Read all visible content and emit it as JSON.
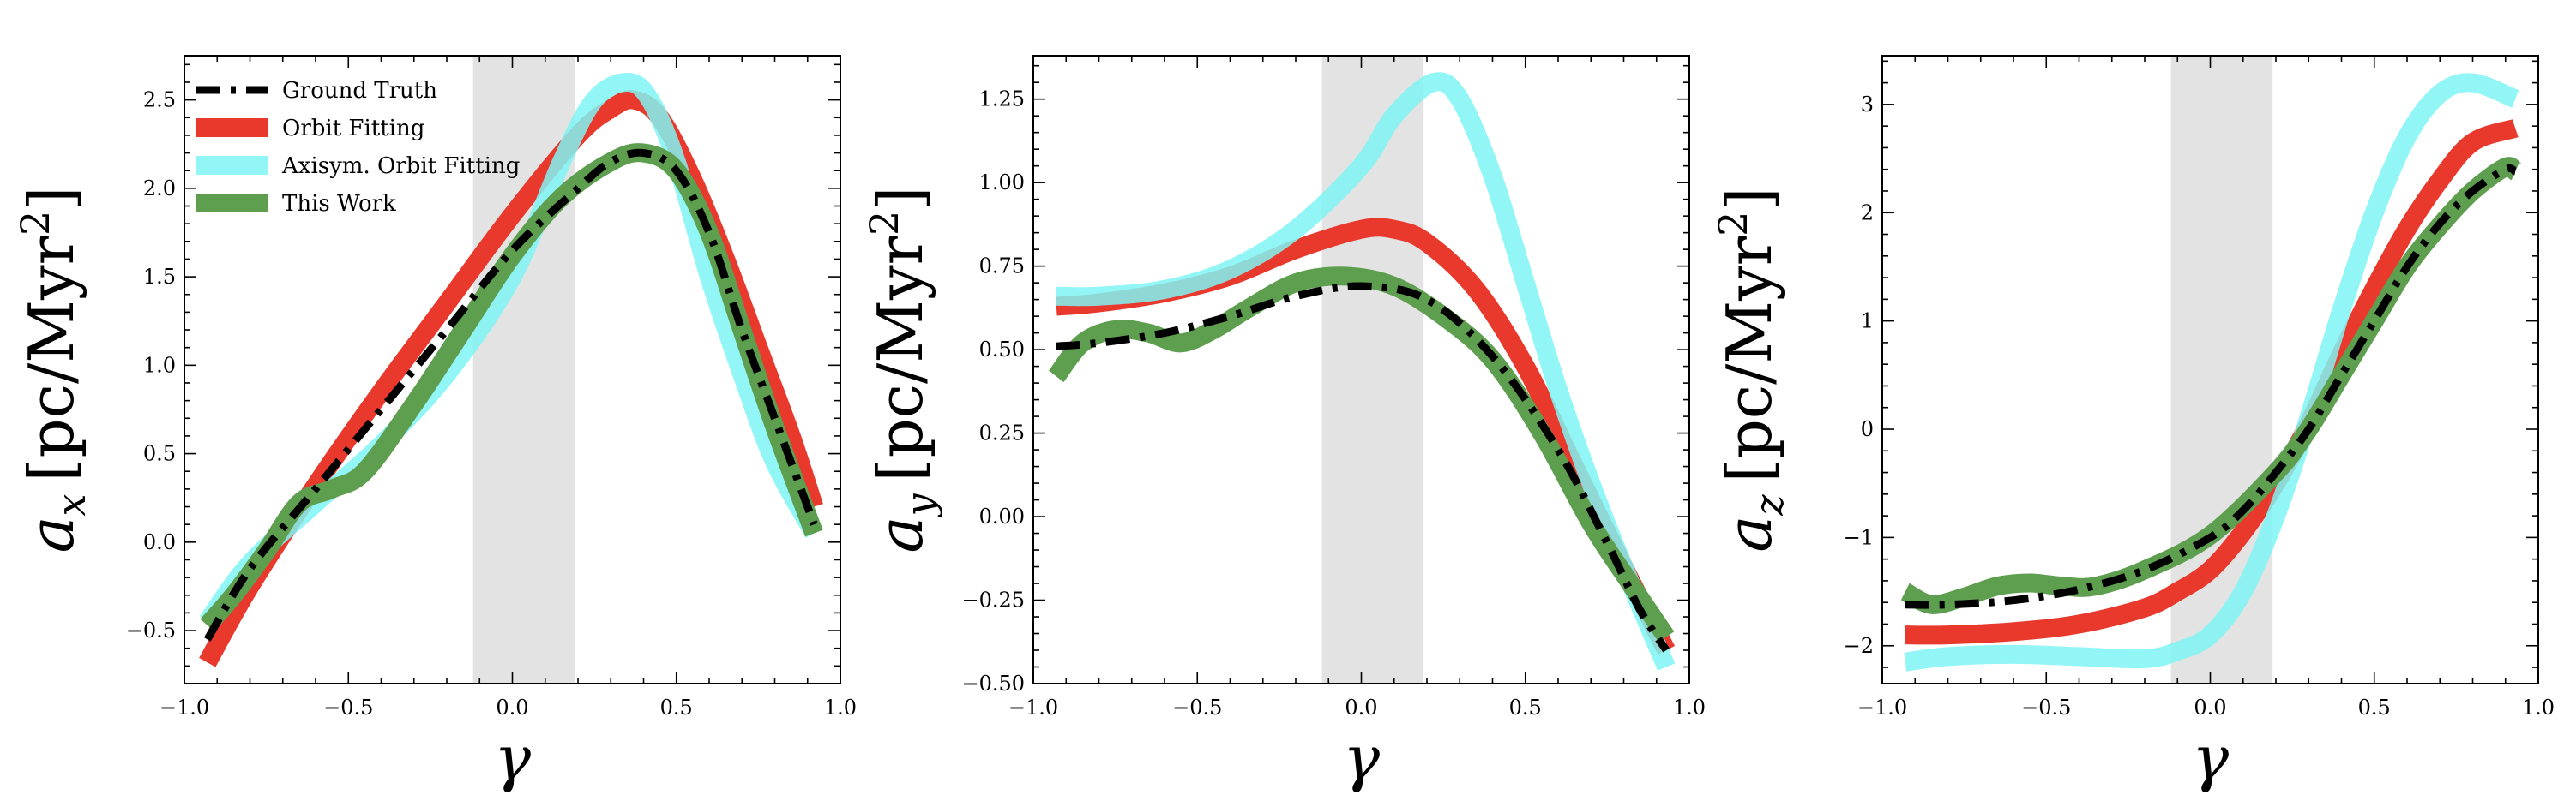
{
  "chart_data": [
    {
      "type": "line",
      "xlabel": "γ",
      "ylabel": {
        "main": "a",
        "sub": "x",
        "unit": "[pc/Myr",
        "sup": "2",
        "close": "]"
      },
      "xlim": [
        -1.0,
        1.0
      ],
      "ylim": [
        -0.8,
        2.75
      ],
      "xticks": [
        -1.0,
        -0.5,
        0.0,
        0.5,
        1.0
      ],
      "xtick_labels": [
        "−1.0",
        "−0.5",
        "0.0",
        "0.5",
        "1.0"
      ],
      "yticks": [
        -0.5,
        0.0,
        0.5,
        1.0,
        1.5,
        2.0,
        2.5
      ],
      "ytick_labels": [
        "−0.5",
        "0.0",
        "0.5",
        "1.0",
        "1.5",
        "2.0",
        "2.5"
      ],
      "shaded_region": [
        -0.12,
        0.19
      ],
      "legend": "top-left",
      "series": [
        {
          "name": "Ground Truth",
          "color": "#000000",
          "style": "dashdot",
          "x": [
            -0.93,
            -0.8,
            -0.6,
            -0.4,
            -0.2,
            0.0,
            0.2,
            0.3,
            0.4,
            0.5,
            0.6,
            0.7,
            0.8,
            0.92
          ],
          "y": [
            -0.55,
            -0.15,
            0.3,
            0.75,
            1.2,
            1.65,
            2.0,
            2.15,
            2.2,
            2.1,
            1.75,
            1.2,
            0.7,
            0.1
          ]
        },
        {
          "name": "Orbit Fitting",
          "color": "#e8392c",
          "style": "solid",
          "x": [
            -0.93,
            -0.8,
            -0.6,
            -0.4,
            -0.2,
            0.0,
            0.2,
            0.3,
            0.37,
            0.45,
            0.55,
            0.65,
            0.75,
            0.85,
            0.92
          ],
          "y": [
            -0.68,
            -0.25,
            0.32,
            0.85,
            1.35,
            1.85,
            2.3,
            2.45,
            2.5,
            2.4,
            2.05,
            1.6,
            1.1,
            0.6,
            0.2
          ]
        },
        {
          "name": "Axisym. Orbit Fitting",
          "color": "#7ff5f5",
          "style": "solid",
          "x": [
            -0.93,
            -0.8,
            -0.6,
            -0.4,
            -0.2,
            0.0,
            0.15,
            0.25,
            0.35,
            0.42,
            0.5,
            0.6,
            0.7,
            0.8,
            0.92
          ],
          "y": [
            -0.45,
            -0.12,
            0.22,
            0.55,
            0.95,
            1.5,
            2.15,
            2.5,
            2.6,
            2.5,
            2.15,
            1.5,
            0.95,
            0.45,
            0.05
          ]
        },
        {
          "name": "This Work",
          "color": "#5e9e4f",
          "style": "solid",
          "x": [
            -0.93,
            -0.85,
            -0.75,
            -0.65,
            -0.55,
            -0.45,
            -0.3,
            -0.15,
            0.0,
            0.15,
            0.3,
            0.4,
            0.5,
            0.6,
            0.7,
            0.8,
            0.92
          ],
          "y": [
            -0.47,
            -0.3,
            -0.05,
            0.22,
            0.3,
            0.4,
            0.78,
            1.2,
            1.62,
            1.95,
            2.15,
            2.2,
            2.1,
            1.75,
            1.2,
            0.65,
            0.05
          ]
        }
      ]
    },
    {
      "type": "line",
      "xlabel": "γ",
      "ylabel": {
        "main": "a",
        "sub": "y",
        "unit": "[pc/Myr",
        "sup": "2",
        "close": "]"
      },
      "xlim": [
        -1.0,
        1.0
      ],
      "ylim": [
        -0.5,
        1.38
      ],
      "xticks": [
        -1.0,
        -0.5,
        0.0,
        0.5,
        1.0
      ],
      "xtick_labels": [
        "−1.0",
        "−0.5",
        "0.0",
        "0.5",
        "1.0"
      ],
      "yticks": [
        -0.5,
        -0.25,
        0.0,
        0.25,
        0.5,
        0.75,
        1.0,
        1.25
      ],
      "ytick_labels": [
        "−0.50",
        "−0.25",
        "0.00",
        "0.25",
        "0.50",
        "0.75",
        "1.00",
        "1.25"
      ],
      "shaded_region": [
        -0.12,
        0.19
      ],
      "series": [
        {
          "name": "Ground Truth",
          "color": "#000000",
          "style": "dashdot",
          "x": [
            -0.93,
            -0.8,
            -0.6,
            -0.4,
            -0.2,
            0.0,
            0.2,
            0.4,
            0.6,
            0.75,
            0.85,
            0.93
          ],
          "y": [
            0.51,
            0.52,
            0.55,
            0.6,
            0.66,
            0.69,
            0.65,
            0.48,
            0.2,
            -0.08,
            -0.28,
            -0.4
          ]
        },
        {
          "name": "Orbit Fitting",
          "color": "#e8392c",
          "style": "solid",
          "x": [
            -0.93,
            -0.8,
            -0.6,
            -0.4,
            -0.2,
            0.0,
            0.1,
            0.2,
            0.35,
            0.5,
            0.65,
            0.8,
            0.93
          ],
          "y": [
            0.63,
            0.64,
            0.67,
            0.72,
            0.8,
            0.86,
            0.86,
            0.82,
            0.68,
            0.45,
            0.15,
            -0.15,
            -0.4
          ]
        },
        {
          "name": "Axisym. Orbit Fitting",
          "color": "#7ff5f5",
          "style": "solid",
          "x": [
            -0.93,
            -0.8,
            -0.6,
            -0.4,
            -0.2,
            0.0,
            0.1,
            0.22,
            0.3,
            0.4,
            0.5,
            0.6,
            0.7,
            0.8,
            0.93
          ],
          "y": [
            0.66,
            0.66,
            0.68,
            0.74,
            0.86,
            1.05,
            1.2,
            1.3,
            1.25,
            1.02,
            0.7,
            0.38,
            0.1,
            -0.15,
            -0.45
          ]
        },
        {
          "name": "This Work",
          "color": "#5e9e4f",
          "style": "solid",
          "x": [
            -0.93,
            -0.85,
            -0.75,
            -0.65,
            -0.55,
            -0.45,
            -0.35,
            -0.2,
            -0.05,
            0.1,
            0.25,
            0.4,
            0.55,
            0.7,
            0.82,
            0.93
          ],
          "y": [
            0.42,
            0.52,
            0.56,
            0.55,
            0.52,
            0.56,
            0.62,
            0.7,
            0.72,
            0.69,
            0.6,
            0.47,
            0.25,
            -0.02,
            -0.2,
            -0.36
          ]
        }
      ]
    },
    {
      "type": "line",
      "xlabel": "γ",
      "ylabel": {
        "main": "a",
        "sub": "z",
        "unit": "[pc/Myr",
        "sup": "2",
        "close": "]"
      },
      "xlim": [
        -1.0,
        1.0
      ],
      "ylim": [
        -2.35,
        3.45
      ],
      "xticks": [
        -1.0,
        -0.5,
        0.0,
        0.5,
        1.0
      ],
      "xtick_labels": [
        "−1.0",
        "−0.5",
        "0.0",
        "0.5",
        "1.0"
      ],
      "yticks": [
        -2,
        -1,
        0,
        1,
        2,
        3
      ],
      "ytick_labels": [
        "−2",
        "−1",
        "0",
        "1",
        "2",
        "3"
      ],
      "shaded_region": [
        -0.12,
        0.19
      ],
      "series": [
        {
          "name": "Ground Truth",
          "color": "#000000",
          "style": "dashdot",
          "x": [
            -0.93,
            -0.8,
            -0.6,
            -0.4,
            -0.2,
            0.0,
            0.1,
            0.2,
            0.3,
            0.4,
            0.5,
            0.6,
            0.7,
            0.8,
            0.9,
            0.93
          ],
          "y": [
            -1.62,
            -1.62,
            -1.58,
            -1.48,
            -1.3,
            -1.0,
            -0.75,
            -0.4,
            0.0,
            0.5,
            1.0,
            1.5,
            1.9,
            2.2,
            2.4,
            2.38
          ]
        },
        {
          "name": "Orbit Fitting",
          "color": "#e8392c",
          "style": "solid",
          "x": [
            -0.93,
            -0.8,
            -0.6,
            -0.4,
            -0.2,
            -0.1,
            0.0,
            0.1,
            0.2,
            0.3,
            0.4,
            0.5,
            0.6,
            0.7,
            0.8,
            0.93
          ],
          "y": [
            -1.9,
            -1.9,
            -1.87,
            -1.8,
            -1.65,
            -1.5,
            -1.3,
            -0.95,
            -0.5,
            0.05,
            0.7,
            1.3,
            1.85,
            2.3,
            2.65,
            2.78
          ]
        },
        {
          "name": "Axisym. Orbit Fitting",
          "color": "#7ff5f5",
          "style": "solid",
          "x": [
            -0.93,
            -0.8,
            -0.6,
            -0.4,
            -0.2,
            -0.1,
            0.0,
            0.1,
            0.2,
            0.3,
            0.4,
            0.5,
            0.6,
            0.7,
            0.8,
            0.93
          ],
          "y": [
            -2.15,
            -2.1,
            -2.08,
            -2.1,
            -2.12,
            -2.05,
            -1.9,
            -1.5,
            -0.8,
            0.1,
            1.1,
            2.0,
            2.7,
            3.1,
            3.2,
            3.05
          ]
        },
        {
          "name": "This Work",
          "color": "#5e9e4f",
          "style": "solid",
          "x": [
            -0.93,
            -0.85,
            -0.75,
            -0.65,
            -0.55,
            -0.45,
            -0.35,
            -0.2,
            0.0,
            0.2,
            0.3,
            0.4,
            0.5,
            0.6,
            0.7,
            0.8,
            0.9,
            0.93
          ],
          "y": [
            -1.5,
            -1.62,
            -1.55,
            -1.45,
            -1.42,
            -1.45,
            -1.45,
            -1.3,
            -0.98,
            -0.4,
            0.0,
            0.5,
            1.0,
            1.5,
            1.88,
            2.2,
            2.42,
            2.38
          ]
        }
      ]
    }
  ]
}
